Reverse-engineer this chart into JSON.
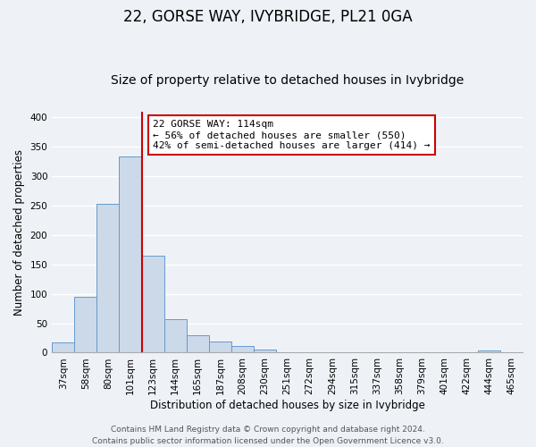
{
  "title": "22, GORSE WAY, IVYBRIDGE, PL21 0GA",
  "subtitle": "Size of property relative to detached houses in Ivybridge",
  "xlabel": "Distribution of detached houses by size in Ivybridge",
  "ylabel": "Number of detached properties",
  "bar_labels": [
    "37sqm",
    "58sqm",
    "80sqm",
    "101sqm",
    "123sqm",
    "144sqm",
    "165sqm",
    "187sqm",
    "208sqm",
    "230sqm",
    "251sqm",
    "272sqm",
    "294sqm",
    "315sqm",
    "337sqm",
    "358sqm",
    "379sqm",
    "401sqm",
    "422sqm",
    "444sqm",
    "465sqm"
  ],
  "bar_values": [
    17,
    95,
    253,
    334,
    165,
    57,
    30,
    19,
    12,
    5,
    1,
    0,
    0,
    0,
    0,
    1,
    0,
    0,
    0,
    4,
    0
  ],
  "bar_color": "#ccd9e8",
  "bar_edge_color": "#6699cc",
  "vline_color": "#cc0000",
  "vline_x": 3.5,
  "ylim": [
    0,
    410
  ],
  "yticks": [
    0,
    50,
    100,
    150,
    200,
    250,
    300,
    350,
    400
  ],
  "annotation_line1": "22 GORSE WAY: 114sqm",
  "annotation_line2": "← 56% of detached houses are smaller (550)",
  "annotation_line3": "42% of semi-detached houses are larger (414) →",
  "annotation_box_facecolor": "#ffffff",
  "annotation_box_edgecolor": "#cc0000",
  "footer1": "Contains HM Land Registry data © Crown copyright and database right 2024.",
  "footer2": "Contains public sector information licensed under the Open Government Licence v3.0.",
  "background_color": "#eef2f7",
  "grid_color": "#ffffff",
  "title_fontsize": 12,
  "subtitle_fontsize": 10,
  "axis_label_fontsize": 8.5,
  "tick_fontsize": 7.5,
  "annotation_fontsize": 8,
  "footer_fontsize": 6.5
}
